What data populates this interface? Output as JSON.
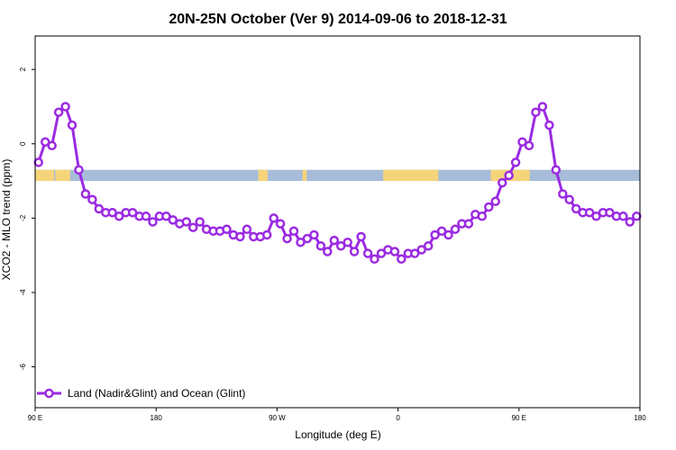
{
  "chart_data": {
    "type": "line",
    "title": "20N-25N October (Ver 9)   2014-09-06 to 2018-12-31",
    "xlabel": "Longitude (deg E)",
    "ylabel": "XCO2 - MLO trend (ppm)",
    "xlim": [
      90,
      540
    ],
    "ylim": [
      -7.1,
      2.9
    ],
    "x_ticks": [
      {
        "value": 90,
        "label": "90 E"
      },
      {
        "value": 180,
        "label": "180"
      },
      {
        "value": 270,
        "label": "90 W"
      },
      {
        "value": 360,
        "label": "0"
      },
      {
        "value": 450,
        "label": "90 E"
      },
      {
        "value": 540,
        "label": "180"
      }
    ],
    "y_ticks": [
      {
        "value": 2,
        "label": "2"
      },
      {
        "value": 0,
        "label": "0"
      },
      {
        "value": -2,
        "label": "-2"
      },
      {
        "value": -4,
        "label": "-4"
      },
      {
        "value": -6,
        "label": "-6"
      }
    ],
    "legend": {
      "position": "bottom-left"
    },
    "land_ocean_strip": {
      "y_range": [
        -1.0,
        -0.7
      ],
      "ocean_color": "#a7bcd9",
      "land_color": "#f6d47a",
      "land_segments": [
        [
          90,
          99
        ],
        [
          99,
          104
        ],
        [
          105,
          116
        ],
        [
          256,
          263
        ],
        [
          289,
          292
        ],
        [
          349,
          390
        ],
        [
          429,
          458
        ]
      ]
    },
    "series": [
      {
        "name": "Land (Nadir&Glint) and Ocean (Glint)",
        "color": "#9b2be2",
        "x": [
          92.5,
          97.5,
          102.5,
          107.5,
          112.5,
          117.5,
          122.5,
          127.5,
          132.5,
          137.5,
          142.5,
          147.5,
          152.5,
          157.5,
          162.5,
          167.5,
          172.5,
          177.5,
          182.5,
          187.5,
          192.5,
          197.5,
          202.5,
          207.5,
          212.5,
          217.5,
          222.5,
          227.5,
          232.5,
          237.5,
          242.5,
          247.5,
          252.5,
          257.5,
          262.5,
          267.5,
          272.5,
          277.5,
          282.5,
          287.5,
          292.5,
          297.5,
          302.5,
          307.5,
          312.5,
          317.5,
          322.5,
          327.5,
          332.5,
          337.5,
          342.5,
          347.5,
          352.5,
          357.5,
          362.5,
          367.5,
          372.5,
          377.5,
          382.5,
          387.5,
          392.5,
          397.5,
          402.5,
          407.5,
          412.5,
          417.5,
          422.5,
          427.5,
          432.5,
          437.5,
          442.5,
          447.5,
          452.5,
          457.5,
          462.5,
          467.5,
          472.5,
          477.5,
          482.5,
          487.5,
          492.5,
          497.5,
          502.5,
          507.5,
          512.5,
          517.5,
          522.5,
          527.5,
          532.5,
          537.5
        ],
        "values": [
          -0.5,
          0.05,
          -0.05,
          0.85,
          1.0,
          0.5,
          -0.7,
          -1.35,
          -1.5,
          -1.75,
          -1.85,
          -1.85,
          -1.95,
          -1.85,
          -1.85,
          -1.95,
          -1.95,
          -2.1,
          -1.95,
          -1.95,
          -2.05,
          -2.15,
          -2.1,
          -2.25,
          -2.1,
          -2.3,
          -2.35,
          -2.35,
          -2.3,
          -2.45,
          -2.5,
          -2.3,
          -2.5,
          -2.5,
          -2.45,
          -2.0,
          -2.15,
          -2.55,
          -2.35,
          -2.65,
          -2.55,
          -2.45,
          -2.75,
          -2.9,
          -2.6,
          -2.75,
          -2.65,
          -2.9,
          -2.5,
          -2.95,
          -3.1,
          -2.95,
          -2.85,
          -2.9,
          -3.1,
          -2.95,
          -2.95,
          -2.85,
          -2.75,
          -2.45,
          -2.35,
          -2.45,
          -2.3,
          -2.15,
          -2.15,
          -1.9,
          -1.95,
          -1.7,
          -1.55,
          -1.05,
          -0.85,
          -0.5,
          0.05,
          -0.05,
          0.85,
          1.0,
          0.5,
          -0.7,
          -1.35,
          -1.5,
          -1.75,
          -1.85,
          -1.85,
          -1.95,
          -1.85,
          -1.85,
          -1.95,
          -1.95,
          -2.1,
          -1.95
        ]
      }
    ]
  }
}
